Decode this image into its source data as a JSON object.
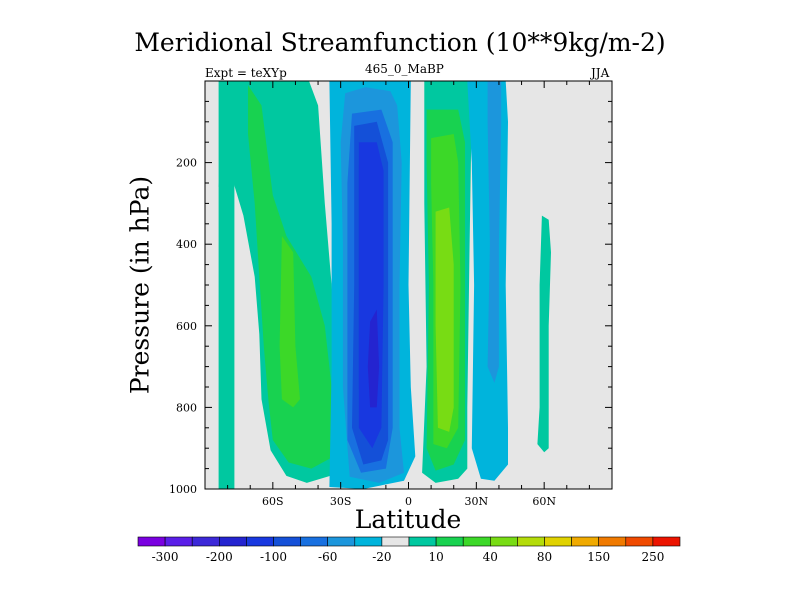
{
  "chart_data": {
    "type": "heatmap",
    "title": "Meridional Streamfunction (10**9kg/m-2)",
    "subtitle_left": "Expt = teXYp",
    "subtitle_center": "465_0_MaBP",
    "subtitle_right": "JJA",
    "xlabel": "Latitude",
    "ylabel": "Pressure (in hPa)",
    "xlim": [
      -90,
      90
    ],
    "ylim": [
      1000,
      0
    ],
    "x_ticks": [
      {
        "value": -60,
        "label": "60S"
      },
      {
        "value": -30,
        "label": "30S"
      },
      {
        "value": 0,
        "label": "0"
      },
      {
        "value": 30,
        "label": "30N"
      },
      {
        "value": 60,
        "label": "60N"
      }
    ],
    "y_ticks": [
      {
        "value": 200,
        "label": "200"
      },
      {
        "value": 400,
        "label": "400"
      },
      {
        "value": 600,
        "label": "600"
      },
      {
        "value": 800,
        "label": "800"
      },
      {
        "value": 1000,
        "label": "1000"
      }
    ],
    "missing_color": "#e6e6e6",
    "levels": [
      -300,
      -250,
      -200,
      -150,
      -100,
      -80,
      -60,
      -40,
      -20,
      -10,
      10,
      20,
      40,
      60,
      80,
      100,
      150,
      200,
      250,
      300
    ],
    "colorbar_labels": [
      {
        "value": -300,
        "label": "-300"
      },
      {
        "value": -200,
        "label": "-200"
      },
      {
        "value": -100,
        "label": "-100"
      },
      {
        "value": -60,
        "label": "-60"
      },
      {
        "value": -20,
        "label": "-20"
      },
      {
        "value": 10,
        "label": "10"
      },
      {
        "value": 40,
        "label": "40"
      },
      {
        "value": 80,
        "label": "80"
      },
      {
        "value": 150,
        "label": "150"
      },
      {
        "value": 250,
        "label": "250"
      }
    ],
    "colors": [
      "#7a00e0",
      "#5a1ee8",
      "#3c28d8",
      "#2424d0",
      "#1838e0",
      "#1450d8",
      "#1870e0",
      "#1c96dc",
      "#00b4dc",
      "#e6e6e6",
      "#00c8a0",
      "#18d250",
      "#3cd828",
      "#78dc14",
      "#b4dc0a",
      "#e0d200",
      "#f0aa00",
      "#f07a00",
      "#f04a00",
      "#ec1400"
    ],
    "cells": [
      {
        "name": "southern-cell-outer",
        "value": 15,
        "points": [
          [
            -84,
            0
          ],
          [
            -77,
            0
          ],
          [
            -77,
            1000
          ],
          [
            -84,
            1000
          ]
        ]
      },
      {
        "name": "southern-cell-main",
        "value": 15,
        "points": [
          [
            -80,
            0
          ],
          [
            -44,
            0
          ],
          [
            -40,
            60
          ],
          [
            -37,
            300
          ],
          [
            -34,
            500
          ],
          [
            -31,
            700
          ],
          [
            -30,
            900
          ],
          [
            -33,
            965
          ],
          [
            -45,
            985
          ],
          [
            -54,
            968
          ],
          [
            -61,
            905
          ],
          [
            -65,
            780
          ],
          [
            -66,
            620
          ],
          [
            -68,
            480
          ],
          [
            -73,
            330
          ],
          [
            -79,
            220
          ],
          [
            -84,
            260
          ]
        ]
      },
      {
        "name": "southern-cell-mid",
        "value": 30,
        "points": [
          [
            -71,
            10
          ],
          [
            -65,
            60
          ],
          [
            -60,
            280
          ],
          [
            -54,
            380
          ],
          [
            -43,
            480
          ],
          [
            -37,
            600
          ],
          [
            -33,
            800
          ],
          [
            -33,
            920
          ],
          [
            -43,
            950
          ],
          [
            -53,
            935
          ],
          [
            -60,
            880
          ],
          [
            -62,
            780
          ],
          [
            -64,
            650
          ],
          [
            -66,
            480
          ],
          [
            -68,
            300
          ],
          [
            -71,
            130
          ]
        ]
      },
      {
        "name": "southern-cell-core",
        "value": 50,
        "points": [
          [
            -56,
            380
          ],
          [
            -51,
            420
          ],
          [
            -50,
            650
          ],
          [
            -48,
            780
          ],
          [
            -51,
            800
          ],
          [
            -56,
            780
          ],
          [
            -57,
            650
          ]
        ]
      },
      {
        "name": "hadley-south-outer",
        "value": -15,
        "points": [
          [
            -35,
            0
          ],
          [
            1,
            0
          ],
          [
            0,
            500
          ],
          [
            1,
            750
          ],
          [
            3,
            920
          ],
          [
            -2,
            980
          ],
          [
            -20,
            1000
          ],
          [
            -35,
            995
          ],
          [
            -34,
            700
          ],
          [
            -34,
            350
          ]
        ]
      },
      {
        "name": "hadley-south-l1",
        "value": -30,
        "points": [
          [
            -28,
            30
          ],
          [
            -19,
            15
          ],
          [
            -8,
            25
          ],
          [
            -5,
            60
          ],
          [
            -3,
            200
          ],
          [
            -4,
            500
          ],
          [
            -4,
            850
          ],
          [
            -2,
            960
          ],
          [
            -13,
            985
          ],
          [
            -26,
            970
          ],
          [
            -29,
            750
          ],
          [
            -29,
            400
          ],
          [
            -30,
            150
          ]
        ]
      },
      {
        "name": "hadley-south-l2",
        "value": -50,
        "points": [
          [
            -25,
            80
          ],
          [
            -12,
            70
          ],
          [
            -7,
            150
          ],
          [
            -7,
            500
          ],
          [
            -7,
            850
          ],
          [
            -10,
            950
          ],
          [
            -21,
            960
          ],
          [
            -27,
            880
          ],
          [
            -27,
            500
          ],
          [
            -27,
            250
          ]
        ]
      },
      {
        "name": "hadley-south-l3",
        "value": -70,
        "points": [
          [
            -24,
            110
          ],
          [
            -14,
            100
          ],
          [
            -9,
            200
          ],
          [
            -9,
            500
          ],
          [
            -9,
            880
          ],
          [
            -12,
            930
          ],
          [
            -20,
            940
          ],
          [
            -25,
            850
          ],
          [
            -24,
            500
          ],
          [
            -24,
            250
          ]
        ]
      },
      {
        "name": "hadley-south-l4",
        "value": -90,
        "points": [
          [
            -22,
            150
          ],
          [
            -14,
            150
          ],
          [
            -11,
            220
          ],
          [
            -11,
            500
          ],
          [
            -12,
            850
          ],
          [
            -16,
            900
          ],
          [
            -22,
            850
          ],
          [
            -22,
            500
          ]
        ]
      },
      {
        "name": "hadley-south-core",
        "value": -120,
        "points": [
          [
            -17,
            590
          ],
          [
            -14,
            560
          ],
          [
            -13,
            700
          ],
          [
            -14,
            800
          ],
          [
            -17,
            800
          ],
          [
            -18,
            700
          ]
        ]
      },
      {
        "name": "hadley-north-outer",
        "value": 15,
        "points": [
          [
            7,
            0
          ],
          [
            27,
            0
          ],
          [
            28,
            60
          ],
          [
            27,
            400
          ],
          [
            26,
            800
          ],
          [
            26,
            950
          ],
          [
            22,
            975
          ],
          [
            12,
            985
          ],
          [
            6,
            960
          ],
          [
            8,
            700
          ],
          [
            7,
            300
          ]
        ]
      },
      {
        "name": "hadley-north-l1",
        "value": 30,
        "points": [
          [
            8,
            70
          ],
          [
            22,
            70
          ],
          [
            25,
            150
          ],
          [
            25,
            500
          ],
          [
            25,
            880
          ],
          [
            20,
            940
          ],
          [
            12,
            955
          ],
          [
            8,
            900
          ],
          [
            9,
            500
          ],
          [
            8,
            200
          ]
        ]
      },
      {
        "name": "hadley-north-l2",
        "value": 50,
        "points": [
          [
            10,
            140
          ],
          [
            20,
            130
          ],
          [
            22,
            200
          ],
          [
            23,
            500
          ],
          [
            22,
            850
          ],
          [
            17,
            900
          ],
          [
            11,
            890
          ],
          [
            11,
            500
          ],
          [
            10,
            250
          ]
        ]
      },
      {
        "name": "hadley-north-core",
        "value": 70,
        "points": [
          [
            12,
            320
          ],
          [
            18,
            310
          ],
          [
            20,
            450
          ],
          [
            20,
            800
          ],
          [
            18,
            860
          ],
          [
            13,
            850
          ],
          [
            12,
            600
          ]
        ]
      },
      {
        "name": "ferrel-north-outer",
        "value": -15,
        "points": [
          [
            26,
            0
          ],
          [
            43,
            0
          ],
          [
            44,
            100
          ],
          [
            43,
            500
          ],
          [
            44,
            850
          ],
          [
            44,
            940
          ],
          [
            38,
            980
          ],
          [
            32,
            975
          ],
          [
            28,
            900
          ],
          [
            29,
            500
          ],
          [
            28,
            200
          ]
        ]
      },
      {
        "name": "ferrel-north-inner",
        "value": -30,
        "points": [
          [
            35,
            0
          ],
          [
            41,
            0
          ],
          [
            41,
            100
          ],
          [
            40,
            400
          ],
          [
            40,
            700
          ],
          [
            38,
            740
          ],
          [
            35,
            700
          ],
          [
            36,
            400
          ],
          [
            35,
            100
          ]
        ]
      },
      {
        "name": "polar-north-cell",
        "value": 15,
        "points": [
          [
            59,
            330
          ],
          [
            62,
            340
          ],
          [
            63,
            420
          ],
          [
            62,
            600
          ],
          [
            62,
            900
          ],
          [
            60,
            910
          ],
          [
            57,
            890
          ],
          [
            58,
            800
          ],
          [
            58,
            500
          ]
        ]
      }
    ]
  }
}
